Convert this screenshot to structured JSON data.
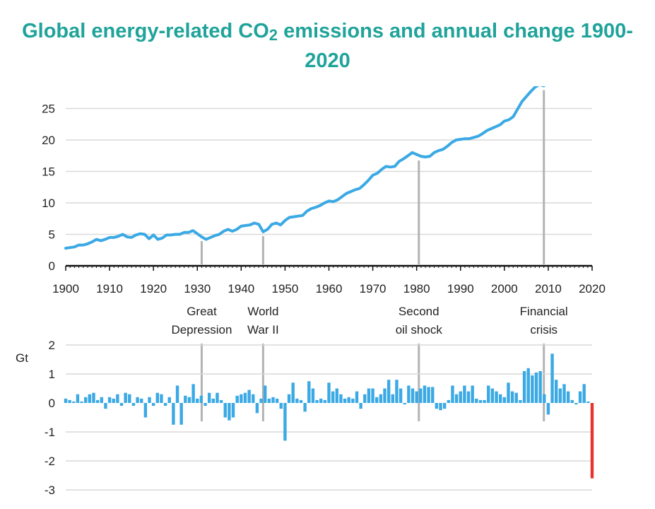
{
  "title": {
    "part1": "Global energy-related CO",
    "sub": "2",
    "part2": "  emissions and annual change 1900-2020"
  },
  "colors": {
    "title": "#1fa39a",
    "line": "#3aa9e4",
    "bar": "#3aa9e4",
    "bar_highlight": "#e8322d",
    "grid": "#d9d9d9",
    "marker": "#b3b3b3"
  },
  "chart_data": [
    {
      "type": "line",
      "name": "Global energy-related CO2 emissions",
      "ylim": [
        0,
        28.5
      ],
      "yticks": [
        0,
        5,
        10,
        15,
        20,
        25
      ],
      "xticks": [
        1900,
        1910,
        1920,
        1930,
        1940,
        1950,
        1960,
        1970,
        1980,
        1990,
        2000,
        2010,
        2020
      ],
      "xlim": [
        1900,
        2020
      ],
      "x": [
        1900,
        1901,
        1902,
        1903,
        1904,
        1905,
        1906,
        1907,
        1908,
        1909,
        1910,
        1911,
        1912,
        1913,
        1914,
        1915,
        1916,
        1917,
        1918,
        1919,
        1920,
        1921,
        1922,
        1923,
        1924,
        1925,
        1926,
        1927,
        1928,
        1929,
        1930,
        1931,
        1932,
        1933,
        1934,
        1935,
        1936,
        1937,
        1938,
        1939,
        1940,
        1941,
        1942,
        1943,
        1944,
        1945,
        1946,
        1947,
        1948,
        1949,
        1950,
        1951,
        1952,
        1953,
        1954,
        1955,
        1956,
        1957,
        1958,
        1959,
        1960,
        1961,
        1962,
        1963,
        1964,
        1965,
        1966,
        1967,
        1968,
        1969,
        1970,
        1971,
        1972,
        1973,
        1974,
        1975,
        1976,
        1977,
        1978,
        1979,
        1980,
        1981,
        1982,
        1983,
        1984,
        1985,
        1986,
        1987,
        1988,
        1989,
        1990,
        1991,
        1992,
        1993,
        1994,
        1995,
        1996,
        1997,
        1998,
        1999,
        2000,
        2001,
        2002,
        2003,
        2004,
        2005,
        2006,
        2007,
        2008,
        2009
      ],
      "y": [
        2.8,
        2.9,
        3.0,
        3.3,
        3.3,
        3.5,
        3.8,
        4.2,
        4.0,
        4.2,
        4.5,
        4.5,
        4.7,
        5.0,
        4.6,
        4.5,
        4.9,
        5.1,
        5.0,
        4.3,
        4.9,
        4.2,
        4.4,
        4.9,
        4.9,
        5.0,
        5.0,
        5.3,
        5.3,
        5.6,
        5.1,
        4.6,
        4.2,
        4.5,
        4.8,
        5.0,
        5.5,
        5.8,
        5.5,
        5.8,
        6.3,
        6.4,
        6.5,
        6.8,
        6.6,
        5.4,
        5.8,
        6.6,
        6.8,
        6.5,
        7.2,
        7.7,
        7.8,
        7.9,
        8.0,
        8.7,
        9.1,
        9.3,
        9.6,
        10.0,
        10.3,
        10.2,
        10.5,
        11.0,
        11.5,
        11.8,
        12.1,
        12.3,
        12.9,
        13.6,
        14.4,
        14.7,
        15.3,
        15.8,
        15.7,
        15.8,
        16.6,
        17.0,
        17.5,
        18.0,
        17.7,
        17.4,
        17.3,
        17.4,
        18.0,
        18.3,
        18.5,
        19.0,
        19.6,
        20.0,
        20.1,
        20.2,
        20.2,
        20.4,
        20.6,
        21.0,
        21.5,
        21.8,
        22.1,
        22.4,
        23.0,
        23.2,
        23.7,
        24.9,
        26.1,
        26.9,
        27.7,
        28.4,
        28.8,
        28.6
      ]
    },
    {
      "type": "bar",
      "name": "Annual change",
      "ylabel": "Gt",
      "ylim": [
        -3,
        2
      ],
      "yticks": [
        2,
        1,
        0,
        -1,
        -2,
        -3
      ],
      "x_start": 1900,
      "values": [
        0.15,
        0.1,
        0.05,
        0.3,
        0.05,
        0.2,
        0.3,
        0.35,
        0.1,
        0.2,
        -0.2,
        0.2,
        0.15,
        0.3,
        -0.1,
        0.35,
        0.3,
        -0.1,
        0.2,
        0.15,
        -0.5,
        0.2,
        -0.1,
        0.35,
        0.3,
        -0.1,
        0.2,
        -0.75,
        0.6,
        -0.75,
        0.25,
        0.2,
        0.65,
        0.15,
        0.25,
        -0.1,
        0.35,
        0.15,
        0.35,
        0.1,
        -0.5,
        -0.6,
        -0.5,
        0.25,
        0.3,
        0.35,
        0.45,
        0.3,
        -0.35,
        0.15,
        0.6,
        0.15,
        0.2,
        0.15,
        -0.2,
        -1.3,
        0.3,
        0.7,
        0.15,
        0.1,
        -0.3,
        0.75,
        0.5,
        0.1,
        0.15,
        0.1,
        0.7,
        0.4,
        0.5,
        0.3,
        0.15,
        0.2,
        0.15,
        0.4,
        -0.2,
        0.3,
        0.5,
        0.5,
        0.2,
        0.3,
        0.5,
        0.8,
        0.3,
        0.8,
        0.5,
        -0.05,
        0.6,
        0.5,
        0.4,
        0.5,
        0.6,
        0.55,
        0.55,
        -0.2,
        -0.25,
        -0.2,
        0.1,
        0.6,
        0.3,
        0.4,
        0.6,
        0.4,
        0.6,
        0.15,
        0.1,
        0.1,
        0.6,
        0.5,
        0.4,
        0.3,
        0.2,
        0.7,
        0.4,
        0.35,
        0.1,
        1.1,
        1.2,
        0.95,
        1.05,
        1.1,
        0.3,
        -0.4,
        1.7,
        0.8,
        0.5,
        0.65,
        0.4,
        0.1,
        -0.05,
        0.4,
        0.65,
        0.05,
        -2.6
      ]
    }
  ],
  "annotations": [
    {
      "year": 1931,
      "lines": [
        "Great",
        "Depression"
      ]
    },
    {
      "year": 1945,
      "lines": [
        "World",
        "War II"
      ]
    },
    {
      "year": 1980.5,
      "lines": [
        "Second",
        "oil shock"
      ]
    },
    {
      "year": 2009,
      "lines": [
        "Financial",
        "crisis"
      ]
    }
  ]
}
